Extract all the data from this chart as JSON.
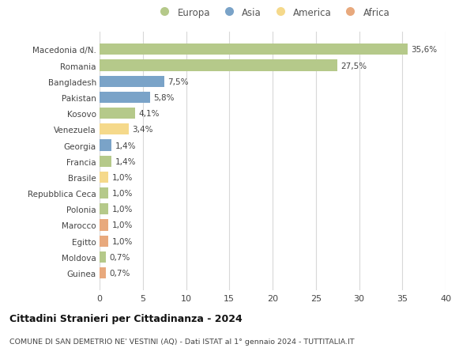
{
  "categories": [
    "Guinea",
    "Moldova",
    "Egitto",
    "Marocco",
    "Polonia",
    "Repubblica Ceca",
    "Brasile",
    "Francia",
    "Georgia",
    "Venezuela",
    "Kosovo",
    "Pakistan",
    "Bangladesh",
    "Romania",
    "Macedonia d/N."
  ],
  "values": [
    0.7,
    0.7,
    1.0,
    1.0,
    1.0,
    1.0,
    1.0,
    1.4,
    1.4,
    3.4,
    4.1,
    5.8,
    7.5,
    27.5,
    35.6
  ],
  "colors": [
    "#e8a97d",
    "#b5c98a",
    "#e8a97d",
    "#e8a97d",
    "#b5c98a",
    "#b5c98a",
    "#f5d98b",
    "#b5c98a",
    "#7aa3c8",
    "#f5d98b",
    "#b5c98a",
    "#7aa3c8",
    "#7aa3c8",
    "#b5c98a",
    "#b5c98a"
  ],
  "labels": [
    "0,7%",
    "0,7%",
    "1,0%",
    "1,0%",
    "1,0%",
    "1,0%",
    "1,0%",
    "1,4%",
    "1,4%",
    "3,4%",
    "4,1%",
    "5,8%",
    "7,5%",
    "27,5%",
    "35,6%"
  ],
  "legend": [
    {
      "label": "Europa",
      "color": "#b5c98a"
    },
    {
      "label": "Asia",
      "color": "#7aa3c8"
    },
    {
      "label": "America",
      "color": "#f5d98b"
    },
    {
      "label": "Africa",
      "color": "#e8a97d"
    }
  ],
  "title": "Cittadini Stranieri per Cittadinanza - 2024",
  "subtitle": "COMUNE DI SAN DEMETRIO NE' VESTINI (AQ) - Dati ISTAT al 1° gennaio 2024 - TUTTITALIA.IT",
  "xlim": [
    0,
    40
  ],
  "xticks": [
    0,
    5,
    10,
    15,
    20,
    25,
    30,
    35,
    40
  ],
  "background_color": "#ffffff",
  "grid_color": "#d8d8d8",
  "bar_height": 0.7
}
